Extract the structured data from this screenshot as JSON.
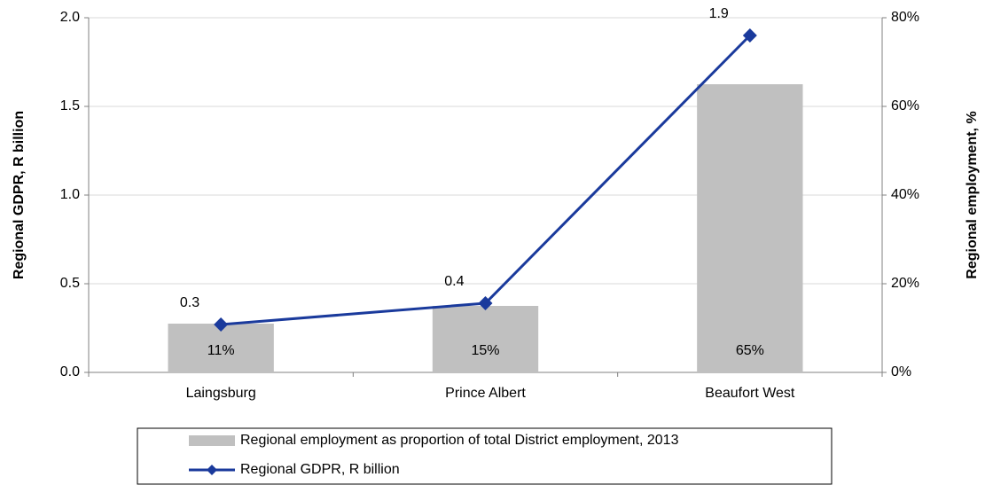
{
  "chart_data": {
    "type": "bar",
    "categories": [
      "Laingsburg",
      "Prince Albert",
      "Beaufort West"
    ],
    "series": [
      {
        "name": "Regional employment as proportion of total District employment, 2013",
        "type": "bar",
        "axis": "y2",
        "color": "#c0c0c0",
        "values": [
          11,
          15,
          65
        ],
        "value_labels": [
          "11%",
          "15%",
          "65%"
        ]
      },
      {
        "name": "Regional GDPR, R billion",
        "type": "line",
        "axis": "y",
        "color": "#1a3a9c",
        "values": [
          0.27,
          0.39,
          1.9
        ],
        "value_labels": [
          "0.3",
          "0.4",
          "1.9"
        ]
      }
    ],
    "ylabel": "Regional GDPR, R billion",
    "y2label": "Regional employment, %",
    "ylim": [
      0,
      2
    ],
    "yticks": [
      {
        "value": 0,
        "label": "0.0"
      },
      0.5,
      {
        "value": 1,
        "label": "1.0"
      },
      1.5,
      {
        "value": 2,
        "label": "2.0"
      }
    ],
    "y2lim": [
      0,
      80
    ],
    "y2ticks": [
      {
        "value": 0,
        "label": "0%"
      },
      {
        "value": 20,
        "label": "20%"
      },
      {
        "value": 40,
        "label": "40%"
      },
      {
        "value": 60,
        "label": "60%"
      },
      {
        "value": 80,
        "label": "80%"
      }
    ],
    "grid": true,
    "legend": "bottom"
  }
}
